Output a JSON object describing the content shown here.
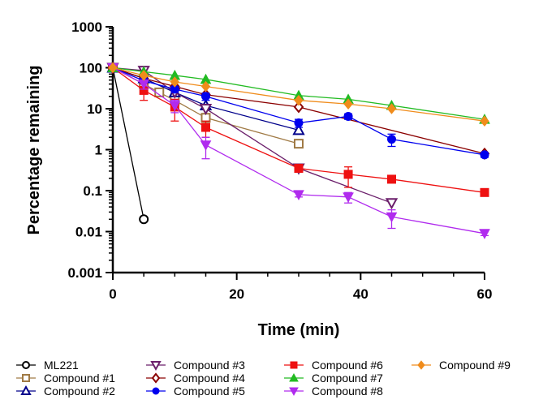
{
  "chart_data": {
    "type": "line",
    "xlabel": "Time (min)",
    "ylabel": "Percentage remaining",
    "xlim": [
      0,
      60
    ],
    "ylim": [
      0.001,
      1000
    ],
    "yscale": "log",
    "grid": false,
    "legend_position": "bottom",
    "x_ticks": [
      "0",
      "20",
      "40",
      "60"
    ],
    "y_ticks": [
      "0.001",
      "0.01",
      "0.1",
      "1",
      "10",
      "100",
      "1000"
    ],
    "series": [
      {
        "name": "ML221",
        "color": "#000000",
        "marker": "circle-open",
        "x": [
          0,
          5
        ],
        "y": [
          100,
          0.02
        ]
      },
      {
        "name": "Compound #1",
        "color": "#a07a45",
        "marker": "square-open",
        "x": [
          0,
          5,
          7.5,
          10,
          15,
          30
        ],
        "y": [
          100,
          40,
          25,
          16,
          6,
          1.4
        ]
      },
      {
        "name": "Compound #2",
        "color": "#00008b",
        "marker": "triangle-up-open",
        "x": [
          0,
          5,
          10,
          15,
          30
        ],
        "y": [
          100,
          55,
          25,
          12,
          3
        ]
      },
      {
        "name": "Compound #3",
        "color": "#6b1f6b",
        "marker": "triangle-down-open",
        "x": [
          0,
          5,
          10,
          15,
          30,
          45
        ],
        "y": [
          100,
          85,
          25,
          10,
          0.35,
          0.05
        ]
      },
      {
        "name": "Compound #4",
        "color": "#8b0000",
        "marker": "diamond-open",
        "x": [
          0,
          5,
          10,
          15,
          30,
          60
        ],
        "y": [
          100,
          55,
          35,
          22,
          11,
          0.8
        ]
      },
      {
        "name": "Compound #5",
        "color": "#0000ee",
        "marker": "circle",
        "x": [
          0,
          5,
          10,
          15,
          30,
          38,
          45,
          60
        ],
        "y": [
          100,
          48,
          30,
          20,
          4.5,
          6.5,
          1.8,
          0.75
        ],
        "err": [
          0,
          8,
          5,
          4,
          1,
          1,
          0.6,
          0.1
        ]
      },
      {
        "name": "Compound #6",
        "color": "#ee1111",
        "marker": "square",
        "x": [
          0,
          5,
          10,
          15,
          30,
          38,
          45,
          60
        ],
        "y": [
          100,
          28,
          11,
          3.5,
          0.35,
          0.25,
          0.19,
          0.09
        ],
        "err": [
          0,
          12,
          6,
          1.5,
          0.05,
          0.13,
          0.02,
          0.01
        ]
      },
      {
        "name": "Compound #7",
        "color": "#22bb22",
        "marker": "triangle-up",
        "x": [
          0,
          5,
          10,
          15,
          30,
          38,
          45,
          60
        ],
        "y": [
          100,
          80,
          65,
          52,
          21,
          17,
          12,
          5.5
        ]
      },
      {
        "name": "Compound #8",
        "color": "#b02bee",
        "marker": "triangle-down",
        "x": [
          0,
          5,
          10,
          15,
          30,
          38,
          45,
          60
        ],
        "y": [
          100,
          40,
          12,
          1.3,
          0.08,
          0.07,
          0.023,
          0.009
        ],
        "err": [
          0,
          10,
          4,
          0.7,
          0.01,
          0.02,
          0.011,
          0.001
        ]
      },
      {
        "name": "Compound #9",
        "color": "#f08c1c",
        "marker": "diamond",
        "x": [
          0,
          5,
          10,
          15,
          30,
          38,
          45,
          60
        ],
        "y": [
          100,
          65,
          45,
          35,
          16,
          13,
          10,
          5
        ]
      }
    ]
  }
}
